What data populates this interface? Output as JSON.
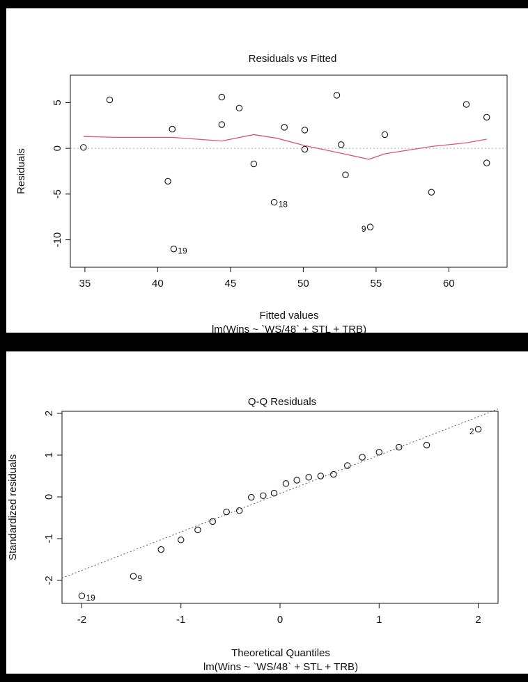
{
  "chart_data": [
    {
      "type": "scatter",
      "title": "Residuals vs Fitted",
      "xlabel": "Fitted values",
      "ylabel": "Residuals",
      "subtitle": "lm(Wins ~ `WS/48` + STL + TRB)",
      "xlim": [
        34,
        64
      ],
      "ylim": [
        -13,
        8
      ],
      "xticks": [
        35,
        40,
        45,
        50,
        55,
        60
      ],
      "yticks": [
        -10,
        -5,
        0,
        5
      ],
      "zero_line": true,
      "points": [
        {
          "x": 34.9,
          "y": 0.1
        },
        {
          "x": 36.7,
          "y": 5.3
        },
        {
          "x": 40.7,
          "y": -3.6
        },
        {
          "x": 41.0,
          "y": 2.1
        },
        {
          "x": 41.1,
          "y": -11.0,
          "label": "19"
        },
        {
          "x": 44.4,
          "y": 5.6
        },
        {
          "x": 44.4,
          "y": 2.6
        },
        {
          "x": 45.6,
          "y": 4.4
        },
        {
          "x": 46.6,
          "y": -1.7
        },
        {
          "x": 48.0,
          "y": -5.9,
          "label": "18"
        },
        {
          "x": 48.7,
          "y": 2.3
        },
        {
          "x": 50.1,
          "y": 2.0
        },
        {
          "x": 50.1,
          "y": -0.1
        },
        {
          "x": 52.3,
          "y": 5.8
        },
        {
          "x": 52.6,
          "y": 0.4
        },
        {
          "x": 52.9,
          "y": -2.9
        },
        {
          "x": 54.6,
          "y": -8.6,
          "label": "9"
        },
        {
          "x": 55.6,
          "y": 1.5
        },
        {
          "x": 58.8,
          "y": -4.8
        },
        {
          "x": 61.2,
          "y": 4.8
        },
        {
          "x": 62.6,
          "y": 3.4
        },
        {
          "x": 62.6,
          "y": -1.6
        }
      ],
      "smooth_line": {
        "color": "#df536b",
        "points": [
          [
            34.9,
            1.3
          ],
          [
            37.0,
            1.2
          ],
          [
            41.0,
            1.2
          ],
          [
            44.4,
            0.8
          ],
          [
            46.6,
            1.5
          ],
          [
            48.2,
            1.1
          ],
          [
            50.1,
            0.3
          ],
          [
            52.5,
            -0.5
          ],
          [
            54.5,
            -1.2
          ],
          [
            55.6,
            -0.6
          ],
          [
            58.8,
            0.2
          ],
          [
            61.2,
            0.6
          ],
          [
            62.6,
            1.0
          ]
        ]
      }
    },
    {
      "type": "scatter",
      "title": "Q-Q Residuals",
      "xlabel": "Theoretical Quantiles",
      "ylabel": "Standardized residuals",
      "subtitle": "lm(Wins ~ `WS/48` + STL + TRB)",
      "xlim": [
        -2.2,
        2.2
      ],
      "ylim": [
        -2.55,
        2.05
      ],
      "xticks": [
        -2,
        -1,
        0,
        1,
        2
      ],
      "yticks": [
        -2,
        -1,
        0,
        1,
        2
      ],
      "reference_line": {
        "intercept": 0.08,
        "slope": 0.92
      },
      "points": [
        {
          "x": -2.0,
          "y": -2.37,
          "label": "19"
        },
        {
          "x": -1.48,
          "y": -1.9,
          "label": "9"
        },
        {
          "x": -1.2,
          "y": -1.26
        },
        {
          "x": -1.0,
          "y": -1.03
        },
        {
          "x": -0.83,
          "y": -0.79
        },
        {
          "x": -0.68,
          "y": -0.59
        },
        {
          "x": -0.54,
          "y": -0.36
        },
        {
          "x": -0.41,
          "y": -0.33
        },
        {
          "x": -0.29,
          "y": -0.01
        },
        {
          "x": -0.17,
          "y": 0.03
        },
        {
          "x": -0.06,
          "y": 0.09
        },
        {
          "x": 0.06,
          "y": 0.32
        },
        {
          "x": 0.17,
          "y": 0.4
        },
        {
          "x": 0.29,
          "y": 0.47
        },
        {
          "x": 0.41,
          "y": 0.5
        },
        {
          "x": 0.54,
          "y": 0.54
        },
        {
          "x": 0.68,
          "y": 0.75
        },
        {
          "x": 0.83,
          "y": 0.95
        },
        {
          "x": 1.0,
          "y": 1.07
        },
        {
          "x": 1.2,
          "y": 1.19
        },
        {
          "x": 1.48,
          "y": 1.24
        },
        {
          "x": 2.0,
          "y": 1.62,
          "label": "2"
        }
      ]
    }
  ]
}
